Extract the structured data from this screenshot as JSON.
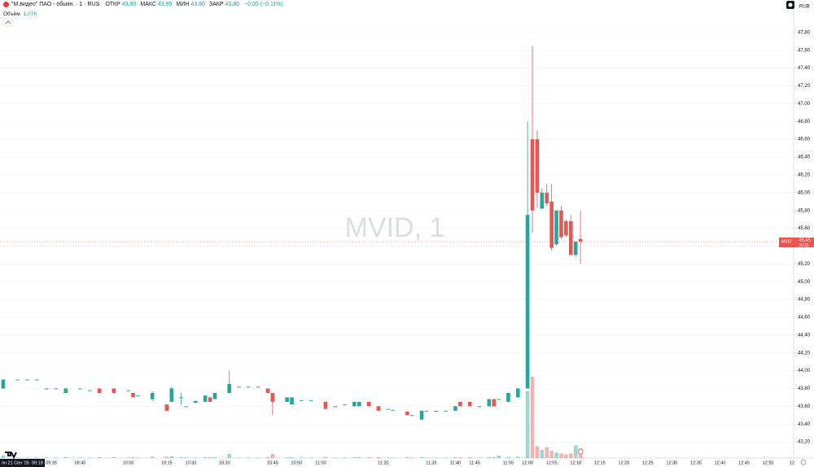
{
  "chart_data": {
    "type": "candlestick",
    "title": "\"М.видео\" ПАО - обыкн. · 1 · RUS",
    "ohlc_legend": [
      {
        "label": "ОТКР",
        "value": "43,80"
      },
      {
        "label": "МАКС",
        "value": "43,95"
      },
      {
        "label": "МИН",
        "value": "43,80"
      },
      {
        "label": "ЗАКР",
        "value": "43,80"
      }
    ],
    "change": "−0,05 (−0,11%)",
    "volume_legend": {
      "label": "Объём",
      "value": "1,07K"
    },
    "currency": "RUB",
    "watermark": "MVID, 1",
    "crosshair_date": "пн 21 Сен '26",
    "crosshair_time": "09:18",
    "last_price": {
      "ticker": "MVID",
      "value": 45.45,
      "label": "45,45",
      "countdown": "00:35"
    },
    "up_color": "#26a69a",
    "down_color": "#ef5350",
    "grid": true,
    "ylim": [
      43.0,
      48.0
    ],
    "yticks": [
      {
        "value": 43.2,
        "label": "43,20"
      },
      {
        "value": 43.4,
        "label": "43,40"
      },
      {
        "value": 43.6,
        "label": "43,60"
      },
      {
        "value": 43.8,
        "label": "43,80"
      },
      {
        "value": 44.0,
        "label": "44,00"
      },
      {
        "value": 44.2,
        "label": "44,20"
      },
      {
        "value": 44.4,
        "label": "44,40"
      },
      {
        "value": 44.6,
        "label": "44,60"
      },
      {
        "value": 44.8,
        "label": "44,80"
      },
      {
        "value": 45.0,
        "label": "45,00"
      },
      {
        "value": 45.2,
        "label": "45,20"
      },
      {
        "value": 45.4,
        "label": "45,40"
      },
      {
        "value": 45.6,
        "label": "45,60"
      },
      {
        "value": 45.8,
        "label": "45,80"
      },
      {
        "value": 46.0,
        "label": "46,00"
      },
      {
        "value": 46.2,
        "label": "46,20"
      },
      {
        "value": 46.4,
        "label": "46,40"
      },
      {
        "value": 46.6,
        "label": "46,60"
      },
      {
        "value": 46.8,
        "label": "46,80"
      },
      {
        "value": 47.0,
        "label": "47,00"
      },
      {
        "value": 47.2,
        "label": "47,20"
      },
      {
        "value": 47.4,
        "label": "47,40"
      },
      {
        "value": 47.6,
        "label": "47,60"
      },
      {
        "value": 47.8,
        "label": "47,80"
      }
    ],
    "categories": [
      null,
      null,
      null,
      null,
      null,
      null,
      null,
      null,
      null,
      null,
      null,
      "09:35",
      null,
      null,
      null,
      null,
      null,
      "09:45",
      null,
      null,
      null,
      null,
      null,
      null,
      null,
      null,
      null,
      "10:00",
      null,
      null,
      null,
      null,
      null,
      null,
      null,
      "10:15",
      null,
      null,
      null,
      null,
      "10:30",
      null,
      null,
      null,
      null,
      null,
      null,
      "10:30",
      null,
      null,
      null,
      null,
      null,
      null,
      null,
      null,
      null,
      "10:45",
      null,
      null,
      null,
      null,
      "10:50",
      null,
      null,
      null,
      null,
      "11:00",
      null,
      null,
      null,
      null,
      null,
      null,
      null,
      null,
      null,
      null,
      null,
      null,
      "11:20",
      null,
      null,
      null,
      null,
      null,
      null,
      null,
      null,
      null,
      "11:35",
      null,
      null,
      null,
      null,
      "11:40",
      null,
      null,
      null,
      "11:45",
      null,
      null,
      null,
      null,
      null,
      null,
      "11:55",
      null,
      null,
      null,
      "12:00",
      null,
      null,
      null,
      null,
      "12:05",
      null,
      null,
      null,
      null,
      "12:10",
      null,
      null,
      null,
      null,
      "12:15",
      null,
      null,
      null,
      null,
      "12:20",
      null,
      null,
      null,
      null,
      "12:25",
      null,
      null,
      null,
      null,
      "12:30",
      null,
      null,
      null,
      null,
      "12:35",
      null,
      null,
      null,
      null,
      "12:40",
      null,
      null,
      null,
      null,
      "12:45",
      null,
      null,
      null,
      null,
      "12:50",
      null,
      null,
      null,
      null,
      "12"
    ],
    "candles": [
      null,
      {
        "o": 43.8,
        "h": 43.9,
        "l": 43.8,
        "c": 43.9,
        "v": 300
      },
      null,
      null,
      {
        "o": 43.9,
        "h": 43.9,
        "l": 43.9,
        "c": 43.9,
        "v": 50
      },
      null,
      {
        "o": 43.9,
        "h": 43.9,
        "l": 43.9,
        "c": 43.9,
        "v": 50
      },
      null,
      {
        "o": 43.9,
        "h": 43.9,
        "l": 43.9,
        "c": 43.9,
        "v": 50
      },
      null,
      {
        "o": 43.8,
        "h": 43.8,
        "l": 43.8,
        "c": 43.8,
        "v": 50
      },
      null,
      {
        "o": 43.8,
        "h": 43.8,
        "l": 43.8,
        "c": 43.8,
        "v": 50
      },
      null,
      {
        "o": 43.75,
        "h": 43.8,
        "l": 43.75,
        "c": 43.8,
        "v": 100
      },
      null,
      null,
      {
        "o": 43.8,
        "h": 43.8,
        "l": 43.8,
        "c": 43.8,
        "v": 50
      },
      null,
      {
        "o": 43.78,
        "h": 43.78,
        "l": 43.78,
        "c": 43.78,
        "v": 50
      },
      null,
      {
        "o": 43.8,
        "h": 43.8,
        "l": 43.75,
        "c": 43.75,
        "v": 100
      },
      null,
      null,
      {
        "o": 43.8,
        "h": 43.8,
        "l": 43.75,
        "c": 43.75,
        "v": 100
      },
      null,
      null,
      {
        "o": 43.78,
        "h": 43.78,
        "l": 43.78,
        "c": 43.78,
        "v": 50
      },
      {
        "o": 43.75,
        "h": 43.75,
        "l": 43.7,
        "c": 43.7,
        "v": 100
      },
      {
        "o": 43.72,
        "h": 43.72,
        "l": 43.72,
        "c": 43.72,
        "v": 50
      },
      null,
      null,
      {
        "o": 43.68,
        "h": 43.77,
        "l": 43.66,
        "c": 43.75,
        "v": 150
      },
      null,
      null,
      {
        "o": 43.62,
        "h": 43.62,
        "l": 43.55,
        "c": 43.55,
        "v": 150
      },
      {
        "o": 43.65,
        "h": 43.82,
        "l": 43.65,
        "c": 43.8,
        "v": 200
      },
      null,
      {
        "o": 43.7,
        "h": 43.75,
        "l": 43.62,
        "c": 43.7,
        "v": 80
      },
      {
        "o": 43.6,
        "h": 43.6,
        "l": 43.6,
        "c": 43.6,
        "v": 50
      },
      null,
      {
        "o": 43.64,
        "h": 43.66,
        "l": 43.64,
        "c": 43.66,
        "v": 50
      },
      null,
      {
        "o": 43.65,
        "h": 43.72,
        "l": 43.65,
        "c": 43.72,
        "v": 80
      },
      {
        "o": 43.7,
        "h": 43.7,
        "l": 43.65,
        "c": 43.65,
        "v": 80
      },
      {
        "o": 43.68,
        "h": 43.75,
        "l": 43.68,
        "c": 43.75,
        "v": 100
      },
      null,
      null,
      {
        "o": 43.75,
        "h": 44.0,
        "l": 43.75,
        "c": 43.85,
        "v": 450
      },
      null,
      {
        "o": 43.82,
        "h": 43.82,
        "l": 43.82,
        "c": 43.82,
        "v": 50
      },
      null,
      {
        "o": 43.82,
        "h": 43.82,
        "l": 43.82,
        "c": 43.82,
        "v": 50
      },
      null,
      {
        "o": 43.82,
        "h": 43.82,
        "l": 43.82,
        "c": 43.82,
        "v": 50
      },
      null,
      {
        "o": 43.8,
        "h": 43.8,
        "l": 43.75,
        "c": 43.75,
        "v": 100
      },
      {
        "o": 43.75,
        "h": 43.75,
        "l": 43.5,
        "c": 43.65,
        "v": 450
      },
      null,
      null,
      {
        "o": 43.65,
        "h": 43.7,
        "l": 43.65,
        "c": 43.7,
        "v": 80
      },
      {
        "o": 43.62,
        "h": 43.7,
        "l": 43.62,
        "c": 43.7,
        "v": 80
      },
      null,
      {
        "o": 43.67,
        "h": 43.67,
        "l": 43.67,
        "c": 43.67,
        "v": 50
      },
      null,
      {
        "o": 43.67,
        "h": 43.67,
        "l": 43.67,
        "c": 43.67,
        "v": 50
      },
      null,
      null,
      {
        "o": 43.65,
        "h": 43.65,
        "l": 43.57,
        "c": 43.57,
        "v": 120
      },
      null,
      {
        "o": 43.6,
        "h": 43.6,
        "l": 43.6,
        "c": 43.6,
        "v": 50
      },
      null,
      {
        "o": 43.62,
        "h": 43.62,
        "l": 43.62,
        "c": 43.62,
        "v": 50
      },
      null,
      {
        "o": 43.6,
        "h": 43.65,
        "l": 43.6,
        "c": 43.65,
        "v": 80
      },
      {
        "o": 43.6,
        "h": 43.65,
        "l": 43.6,
        "c": 43.65,
        "v": 80
      },
      null,
      {
        "o": 43.65,
        "h": 43.65,
        "l": 43.6,
        "c": 43.6,
        "v": 80
      },
      null,
      {
        "o": 43.6,
        "h": 43.6,
        "l": 43.55,
        "c": 43.55,
        "v": 80
      },
      null,
      {
        "o": 43.57,
        "h": 43.57,
        "l": 43.57,
        "c": 43.57,
        "v": 50
      },
      {
        "o": 43.56,
        "h": 43.56,
        "l": 43.56,
        "c": 43.56,
        "v": 50
      },
      null,
      null,
      {
        "o": 43.54,
        "h": 43.54,
        "l": 43.5,
        "c": 43.5,
        "v": 80
      },
      {
        "o": 43.5,
        "h": 43.5,
        "l": 43.5,
        "c": 43.5,
        "v": 50
      },
      null,
      {
        "o": 43.45,
        "h": 43.55,
        "l": 43.45,
        "c": 43.55,
        "v": 120
      },
      {
        "o": 43.55,
        "h": 43.55,
        "l": 43.55,
        "c": 43.55,
        "v": 50
      },
      null,
      {
        "o": 43.55,
        "h": 43.55,
        "l": 43.55,
        "c": 43.55,
        "v": 50
      },
      null,
      {
        "o": 43.55,
        "h": 43.55,
        "l": 43.55,
        "c": 43.55,
        "v": 50
      },
      null,
      {
        "o": 43.55,
        "h": 43.6,
        "l": 43.55,
        "c": 43.6,
        "v": 80
      },
      {
        "o": 43.65,
        "h": 43.65,
        "l": 43.6,
        "c": 43.6,
        "v": 80
      },
      null,
      {
        "o": 43.65,
        "h": 43.65,
        "l": 43.6,
        "c": 43.6,
        "v": 80
      },
      null,
      {
        "o": 43.6,
        "h": 43.6,
        "l": 43.6,
        "c": 43.6,
        "v": 50
      },
      null,
      {
        "o": 43.6,
        "h": 43.68,
        "l": 43.6,
        "c": 43.68,
        "v": 100
      },
      {
        "o": 43.68,
        "h": 43.68,
        "l": 43.6,
        "c": 43.6,
        "v": 100
      },
      {
        "o": 43.68,
        "h": 43.68,
        "l": 43.68,
        "c": 43.68,
        "v": 270
      },
      null,
      {
        "o": 43.65,
        "h": 43.75,
        "l": 43.65,
        "c": 43.75,
        "v": 120
      },
      null,
      {
        "o": 43.7,
        "h": 43.8,
        "l": 43.7,
        "c": 43.8,
        "v": 150
      },
      null,
      {
        "o": 43.8,
        "h": 46.8,
        "l": 43.8,
        "c": 45.75,
        "v": 7400
      },
      {
        "o": 46.6,
        "h": 47.65,
        "l": 45.55,
        "c": 45.8,
        "v": 9000
      },
      {
        "o": 46.6,
        "h": 46.7,
        "l": 45.83,
        "c": 46.0,
        "v": 1300
      },
      {
        "o": 45.82,
        "h": 46.05,
        "l": 45.82,
        "c": 46.0,
        "v": 900
      },
      {
        "o": 46.0,
        "h": 46.1,
        "l": 45.85,
        "c": 45.88,
        "v": 1200
      },
      {
        "o": 45.9,
        "h": 46.1,
        "l": 45.35,
        "c": 45.38,
        "v": 800
      },
      {
        "o": 45.42,
        "h": 45.8,
        "l": 45.4,
        "c": 45.8,
        "v": 600
      },
      {
        "o": 45.8,
        "h": 45.85,
        "l": 45.48,
        "c": 45.5,
        "v": 500
      },
      {
        "o": 45.68,
        "h": 45.7,
        "l": 45.5,
        "c": 45.52,
        "v": 400
      },
      {
        "o": 45.68,
        "h": 45.75,
        "l": 45.3,
        "c": 45.3,
        "v": 500
      },
      {
        "o": 45.3,
        "h": 45.45,
        "l": 45.28,
        "c": 45.45,
        "v": 1400
      },
      {
        "o": 45.48,
        "h": 45.8,
        "l": 45.2,
        "c": 45.45,
        "v": 1070
      },
      null,
      null,
      null,
      null,
      null,
      null,
      null,
      null,
      null,
      null,
      null,
      null,
      null,
      null,
      null,
      null,
      null,
      null,
      null,
      null,
      null,
      null,
      null,
      null,
      null,
      null,
      null,
      null,
      null,
      null,
      null,
      null,
      null,
      null,
      null,
      null,
      null,
      null,
      null,
      null,
      null,
      null,
      null,
      null
    ]
  }
}
